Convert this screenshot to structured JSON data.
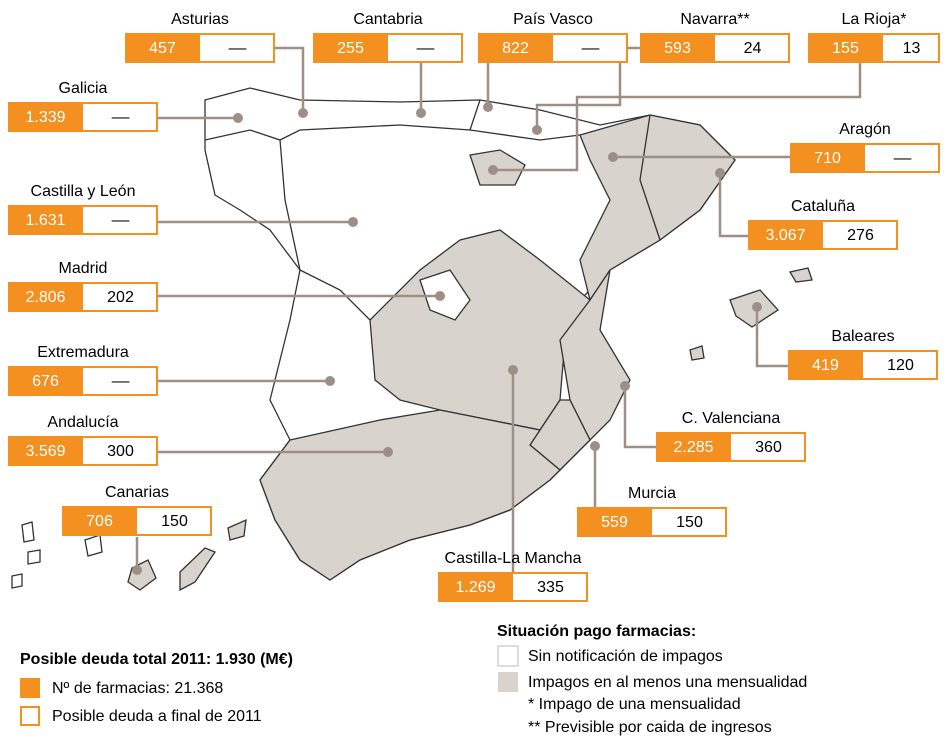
{
  "regions": [
    {
      "name": "Asturias",
      "farmacias": "457",
      "deuda": "––"
    },
    {
      "name": "Cantabria",
      "farmacias": "255",
      "deuda": "––"
    },
    {
      "name": "País Vasco",
      "farmacias": "822",
      "deuda": "––"
    },
    {
      "name": "Navarra**",
      "farmacias": "593",
      "deuda": "24"
    },
    {
      "name": "La Rioja*",
      "farmacias": "155",
      "deuda": "13"
    },
    {
      "name": "Galicia",
      "farmacias": "1.339",
      "deuda": "––"
    },
    {
      "name": "Aragón",
      "farmacias": "710",
      "deuda": "––"
    },
    {
      "name": "Castilla y León",
      "farmacias": "1.631",
      "deuda": "––"
    },
    {
      "name": "Cataluña",
      "farmacias": "3.067",
      "deuda": "276"
    },
    {
      "name": "Madrid",
      "farmacias": "2.806",
      "deuda": "202"
    },
    {
      "name": "Baleares",
      "farmacias": "419",
      "deuda": "120"
    },
    {
      "name": "Extremadura",
      "farmacias": "676",
      "deuda": "––"
    },
    {
      "name": "Andalucía",
      "farmacias": "3.569",
      "deuda": "300"
    },
    {
      "name": "C. Valenciana",
      "farmacias": "2.285",
      "deuda": "360"
    },
    {
      "name": "Canarias",
      "farmacias": "706",
      "deuda": "150"
    },
    {
      "name": "Murcia",
      "farmacias": "559",
      "deuda": "150"
    },
    {
      "name": "Castilla-La Mancha",
      "farmacias": "1.269",
      "deuda": "335"
    }
  ],
  "legend_left": {
    "title": "Posible deuda total 2011: 1.930 (M€)",
    "items": [
      "Nº de farmacias: 21.368",
      "Posible deuda a final de 2011"
    ]
  },
  "legend_right": {
    "title": "Situación pago farmacias:",
    "items": [
      "Sin notificación de impagos",
      "Impagos en al menos una mensualidad"
    ],
    "notes": [
      "* Impago de una mensualidad",
      "** Previsible por caida de ingresos"
    ]
  }
}
